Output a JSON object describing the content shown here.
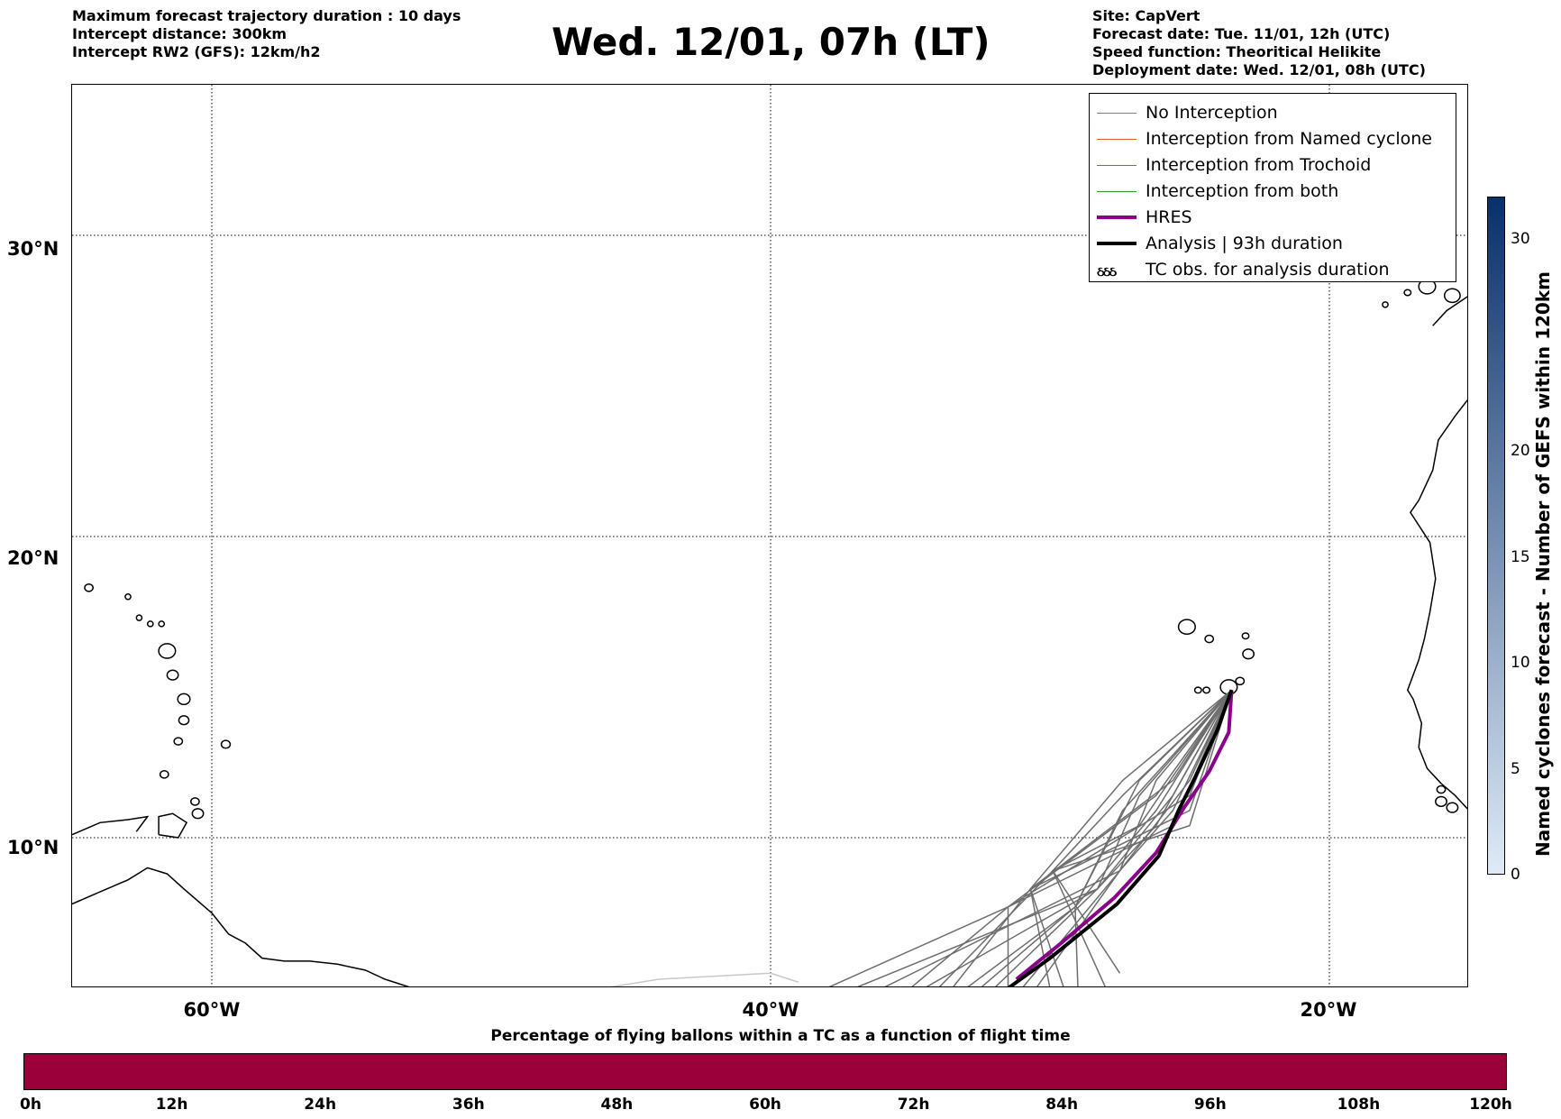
{
  "header": {
    "left_lines": [
      "Maximum forecast trajectory duration : 10 days",
      "Intercept distance: 300km",
      "Intercept RW2 (GFS):  12km/h2"
    ],
    "title": "Wed. 12/01, 07h (LT)",
    "right_lines": [
      "Site: CapVert",
      "Forecast date: Tue. 11/01, 12h (UTC)",
      "Speed function: Theoritical Helikite",
      "Deployment date: Wed. 12/01, 08h (UTC)"
    ]
  },
  "map": {
    "lat_labels": [
      "30°N",
      "20°N",
      "10°N"
    ],
    "lon_labels": [
      "60°W",
      "40°W",
      "20°W"
    ],
    "lon_range": [
      -65,
      -15
    ],
    "lat_range": [
      5,
      35
    ],
    "grid": true,
    "site": "CapVert"
  },
  "legend": {
    "items": [
      {
        "label": "No Interception",
        "color": "#808080",
        "style": "thin"
      },
      {
        "label": "Interception from Named cyclone",
        "color": "#e8601c",
        "style": "thin"
      },
      {
        "label": "Interception from Trochoid",
        "color": "#808000",
        "style": "thin"
      },
      {
        "label": "Interception from both",
        "color": "#2ca02c",
        "style": "thin"
      },
      {
        "label": "HRES",
        "color": "#8b008b",
        "style": "thick"
      },
      {
        "label": "Analysis | 93h duration",
        "color": "#000000",
        "style": "thick"
      },
      {
        "label": "TC obs. for analysis duration",
        "color": "#000000",
        "style": "tc-symbol"
      }
    ],
    "tc_symbol": "ઠઠઠ"
  },
  "colorbar_vertical": {
    "label": "Named cyclones forecast - Number of GEFS within 120km",
    "ticks": [
      "0",
      "5",
      "10",
      "15",
      "20",
      "30"
    ],
    "tick_values": [
      0,
      5,
      10,
      15,
      20,
      30
    ],
    "range": [
      0,
      32
    ],
    "color_low": "#deebf7",
    "color_high": "#08306b"
  },
  "colorbar_horizontal": {
    "title": "Percentage of flying ballons within a TC as a function of flight time",
    "ticks": [
      "0h",
      "12h",
      "24h",
      "36h",
      "48h",
      "60h",
      "72h",
      "84h",
      "96h",
      "108h",
      "120h"
    ],
    "color": "#9c003a"
  }
}
